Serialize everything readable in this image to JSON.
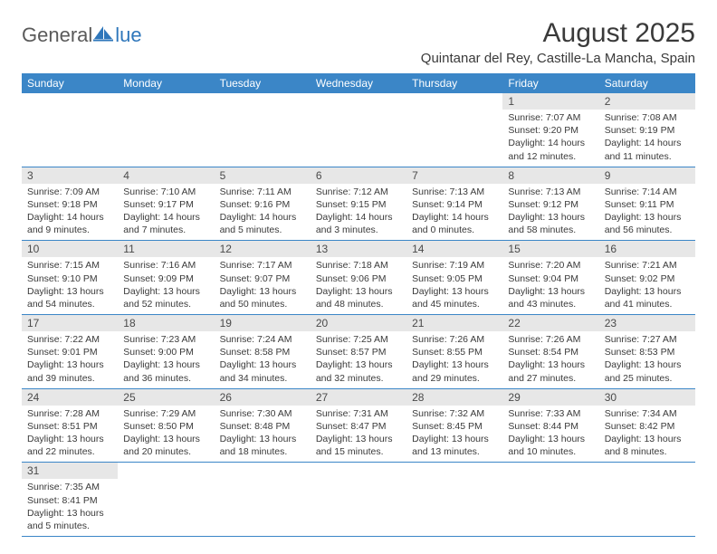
{
  "logo": {
    "text_left": "General",
    "text_right": "lue"
  },
  "title": "August 2025",
  "location": "Quintanar del Rey, Castille-La Mancha, Spain",
  "colors": {
    "header_bg": "#3b86c7",
    "header_fg": "#ffffff",
    "daynum_bg": "#e7e7e7",
    "row_divider": "#3b86c7",
    "text": "#3a3a3a",
    "logo_gray": "#5a5a5a",
    "logo_blue": "#2f77bb",
    "page_bg": "#ffffff"
  },
  "typography": {
    "title_fontsize": 30,
    "location_fontsize": 15,
    "header_fontsize": 12,
    "cell_fontsize": 10.5
  },
  "weekdays": [
    "Sunday",
    "Monday",
    "Tuesday",
    "Wednesday",
    "Thursday",
    "Friday",
    "Saturday"
  ],
  "first_weekday_index": 5,
  "days": [
    {
      "n": 1,
      "sunrise": "7:07 AM",
      "sunset": "9:20 PM",
      "dl_h": 14,
      "dl_m": 12
    },
    {
      "n": 2,
      "sunrise": "7:08 AM",
      "sunset": "9:19 PM",
      "dl_h": 14,
      "dl_m": 11
    },
    {
      "n": 3,
      "sunrise": "7:09 AM",
      "sunset": "9:18 PM",
      "dl_h": 14,
      "dl_m": 9
    },
    {
      "n": 4,
      "sunrise": "7:10 AM",
      "sunset": "9:17 PM",
      "dl_h": 14,
      "dl_m": 7
    },
    {
      "n": 5,
      "sunrise": "7:11 AM",
      "sunset": "9:16 PM",
      "dl_h": 14,
      "dl_m": 5
    },
    {
      "n": 6,
      "sunrise": "7:12 AM",
      "sunset": "9:15 PM",
      "dl_h": 14,
      "dl_m": 3
    },
    {
      "n": 7,
      "sunrise": "7:13 AM",
      "sunset": "9:14 PM",
      "dl_h": 14,
      "dl_m": 0
    },
    {
      "n": 8,
      "sunrise": "7:13 AM",
      "sunset": "9:12 PM",
      "dl_h": 13,
      "dl_m": 58
    },
    {
      "n": 9,
      "sunrise": "7:14 AM",
      "sunset": "9:11 PM",
      "dl_h": 13,
      "dl_m": 56
    },
    {
      "n": 10,
      "sunrise": "7:15 AM",
      "sunset": "9:10 PM",
      "dl_h": 13,
      "dl_m": 54
    },
    {
      "n": 11,
      "sunrise": "7:16 AM",
      "sunset": "9:09 PM",
      "dl_h": 13,
      "dl_m": 52
    },
    {
      "n": 12,
      "sunrise": "7:17 AM",
      "sunset": "9:07 PM",
      "dl_h": 13,
      "dl_m": 50
    },
    {
      "n": 13,
      "sunrise": "7:18 AM",
      "sunset": "9:06 PM",
      "dl_h": 13,
      "dl_m": 48
    },
    {
      "n": 14,
      "sunrise": "7:19 AM",
      "sunset": "9:05 PM",
      "dl_h": 13,
      "dl_m": 45
    },
    {
      "n": 15,
      "sunrise": "7:20 AM",
      "sunset": "9:04 PM",
      "dl_h": 13,
      "dl_m": 43
    },
    {
      "n": 16,
      "sunrise": "7:21 AM",
      "sunset": "9:02 PM",
      "dl_h": 13,
      "dl_m": 41
    },
    {
      "n": 17,
      "sunrise": "7:22 AM",
      "sunset": "9:01 PM",
      "dl_h": 13,
      "dl_m": 39
    },
    {
      "n": 18,
      "sunrise": "7:23 AM",
      "sunset": "9:00 PM",
      "dl_h": 13,
      "dl_m": 36
    },
    {
      "n": 19,
      "sunrise": "7:24 AM",
      "sunset": "8:58 PM",
      "dl_h": 13,
      "dl_m": 34
    },
    {
      "n": 20,
      "sunrise": "7:25 AM",
      "sunset": "8:57 PM",
      "dl_h": 13,
      "dl_m": 32
    },
    {
      "n": 21,
      "sunrise": "7:26 AM",
      "sunset": "8:55 PM",
      "dl_h": 13,
      "dl_m": 29
    },
    {
      "n": 22,
      "sunrise": "7:26 AM",
      "sunset": "8:54 PM",
      "dl_h": 13,
      "dl_m": 27
    },
    {
      "n": 23,
      "sunrise": "7:27 AM",
      "sunset": "8:53 PM",
      "dl_h": 13,
      "dl_m": 25
    },
    {
      "n": 24,
      "sunrise": "7:28 AM",
      "sunset": "8:51 PM",
      "dl_h": 13,
      "dl_m": 22
    },
    {
      "n": 25,
      "sunrise": "7:29 AM",
      "sunset": "8:50 PM",
      "dl_h": 13,
      "dl_m": 20
    },
    {
      "n": 26,
      "sunrise": "7:30 AM",
      "sunset": "8:48 PM",
      "dl_h": 13,
      "dl_m": 18
    },
    {
      "n": 27,
      "sunrise": "7:31 AM",
      "sunset": "8:47 PM",
      "dl_h": 13,
      "dl_m": 15
    },
    {
      "n": 28,
      "sunrise": "7:32 AM",
      "sunset": "8:45 PM",
      "dl_h": 13,
      "dl_m": 13
    },
    {
      "n": 29,
      "sunrise": "7:33 AM",
      "sunset": "8:44 PM",
      "dl_h": 13,
      "dl_m": 10
    },
    {
      "n": 30,
      "sunrise": "7:34 AM",
      "sunset": "8:42 PM",
      "dl_h": 13,
      "dl_m": 8
    },
    {
      "n": 31,
      "sunrise": "7:35 AM",
      "sunset": "8:41 PM",
      "dl_h": 13,
      "dl_m": 5
    }
  ],
  "labels": {
    "sunrise": "Sunrise:",
    "sunset": "Sunset:",
    "daylight": "Daylight:",
    "hours": "hours",
    "and": "and",
    "minutes": "minutes."
  }
}
